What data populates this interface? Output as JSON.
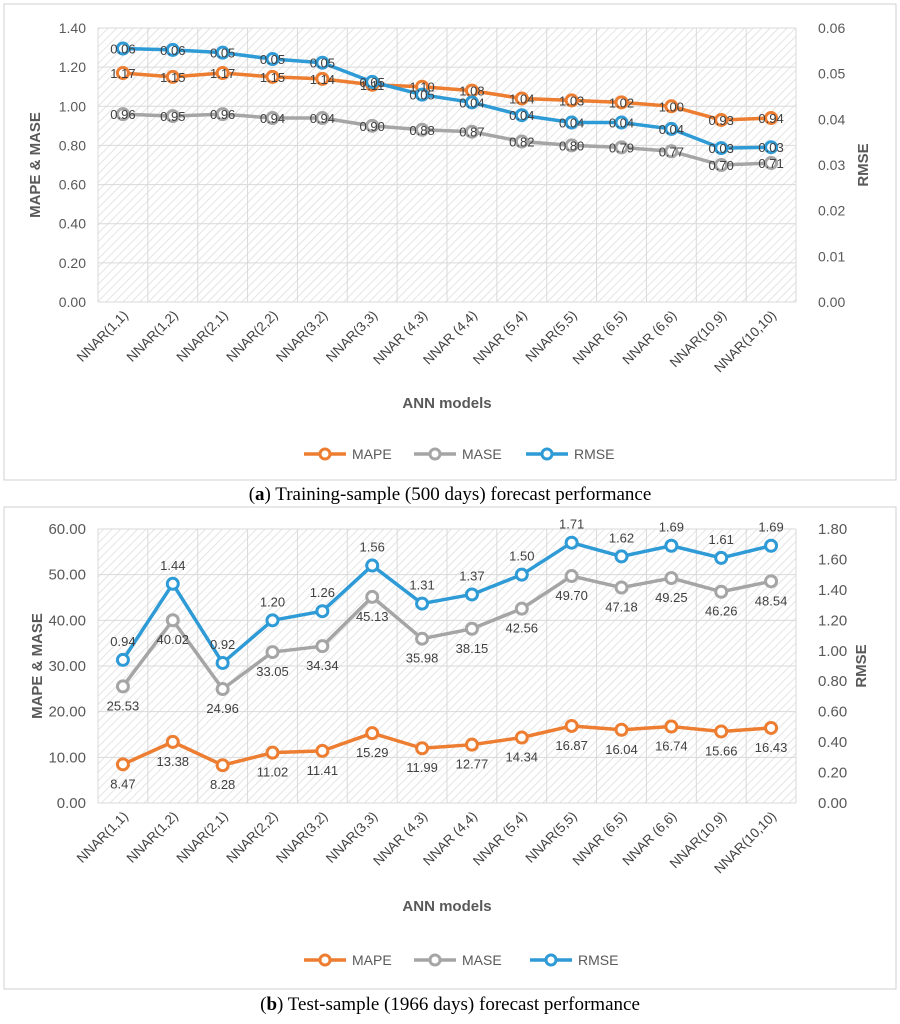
{
  "chart_data": [
    {
      "type": "line",
      "panel_letter": "a",
      "caption_text": ") Training-sample (500 days) forecast performance",
      "title": "",
      "xlabel": "ANN models",
      "ylabel": "MAPE & MASE",
      "y2label": "RMSE",
      "ylim": [
        0,
        1.4
      ],
      "y2lim": [
        0,
        0.06
      ],
      "yticks": [
        "0.00",
        "0.20",
        "0.40",
        "0.60",
        "0.80",
        "1.00",
        "1.20",
        "1.40"
      ],
      "y2ticks": [
        "0.00",
        "0.01",
        "0.02",
        "0.03",
        "0.04",
        "0.05",
        "0.06"
      ],
      "grid": true,
      "legend_position": "bottom",
      "categories": [
        "NNAR(1,1)",
        "NNAR(1,2)",
        "NNAR(2,1)",
        "NNAR(2,2)",
        "NNAR(3,2)",
        "NNAR(3,3)",
        "NNAR (4,3)",
        "NNAR (4,4)",
        "NNAR (5,4)",
        "NNAR(5,5)",
        "NNAR (6,5)",
        "NNAR (6,6)",
        "NNAR(10,9)",
        "NNAR(10,10)"
      ],
      "series": [
        {
          "name": "MAPE",
          "axis": "left",
          "color": "#ED7D31",
          "values": [
            1.17,
            1.15,
            1.17,
            1.15,
            1.14,
            1.11,
            1.1,
            1.08,
            1.04,
            1.03,
            1.02,
            1.0,
            0.93,
            0.94
          ],
          "labels": [
            "1.17",
            "1.15",
            "1.17",
            "1.15",
            "1.14",
            "1.11",
            "1.10",
            "1.08",
            "1.04",
            "1.03",
            "1.02",
            "1.00",
            "0.93",
            "0.94"
          ]
        },
        {
          "name": "MASE",
          "axis": "left",
          "color": "#A5A5A5",
          "values": [
            0.96,
            0.95,
            0.96,
            0.94,
            0.94,
            0.9,
            0.88,
            0.87,
            0.82,
            0.8,
            0.79,
            0.77,
            0.7,
            0.71
          ],
          "labels": [
            "0.96",
            "0.95",
            "0.96",
            "0.94",
            "0.94",
            "0.90",
            "0.88",
            "0.87",
            "0.82",
            "0.80",
            "0.79",
            "0.77",
            "0.70",
            "0.71"
          ]
        },
        {
          "name": "RMSE",
          "axis": "right",
          "color": "#2E9BD6",
          "values": [
            0.0555,
            0.0552,
            0.0546,
            0.0532,
            0.0524,
            0.0482,
            0.0454,
            0.0437,
            0.0409,
            0.0393,
            0.0393,
            0.0379,
            0.0337,
            0.0339
          ],
          "labels": [
            "0.06",
            "0.06",
            "0.05",
            "0.05",
            "0.05",
            "0.05",
            "0.05",
            "0.04",
            "0.04",
            "0.04",
            "0.04",
            "0.04",
            "0.03",
            "0.03"
          ]
        }
      ]
    },
    {
      "type": "line",
      "panel_letter": "b",
      "caption_text": ") Test-sample (1966 days) forecast performance",
      "title": "",
      "xlabel": "ANN models",
      "ylabel": "MAPE & MASE",
      "y2label": "RMSE",
      "ylim": [
        0,
        60
      ],
      "y2lim": [
        0,
        1.8
      ],
      "yticks": [
        "0.00",
        "10.00",
        "20.00",
        "30.00",
        "40.00",
        "50.00",
        "60.00"
      ],
      "y2ticks": [
        "0.00",
        "0.20",
        "0.40",
        "0.60",
        "0.80",
        "1.00",
        "1.20",
        "1.40",
        "1.60",
        "1.80"
      ],
      "grid": true,
      "legend_position": "bottom",
      "categories": [
        "NNAR(1,1)",
        "NNAR(1,2)",
        "NNAR(2,1)",
        "NNAR(2,2)",
        "NNAR(3,2)",
        "NNAR(3,3)",
        "NNAR (4,3)",
        "NNAR (4,4)",
        "NNAR (5,4)",
        "NNAR(5,5)",
        "NNAR (6,5)",
        "NNAR (6,6)",
        "NNAR(10,9)",
        "NNAR(10,10)"
      ],
      "series": [
        {
          "name": "MAPE",
          "axis": "left",
          "color": "#ED7D31",
          "values": [
            8.47,
            13.38,
            8.28,
            11.02,
            11.41,
            15.29,
            11.99,
            12.77,
            14.34,
            16.87,
            16.04,
            16.74,
            15.66,
            16.43
          ],
          "labels": [
            "8.47",
            "13.38",
            "8.28",
            "11.02",
            "11.41",
            "15.29",
            "11.99",
            "12.77",
            "14.34",
            "16.87",
            "16.04",
            "16.74",
            "15.66",
            "16.43"
          ]
        },
        {
          "name": "MASE",
          "axis": "left",
          "color": "#A5A5A5",
          "values": [
            25.53,
            40.02,
            24.96,
            33.05,
            34.34,
            45.13,
            35.98,
            38.15,
            42.56,
            49.7,
            47.18,
            49.25,
            46.26,
            48.54
          ],
          "labels": [
            "25.53",
            "40.02",
            "24.96",
            "33.05",
            "34.34",
            "45.13",
            "35.98",
            "38.15",
            "42.56",
            "49.70",
            "47.18",
            "49.25",
            "46.26",
            "48.54"
          ]
        },
        {
          "name": "RMSE",
          "axis": "right",
          "color": "#2E9BD6",
          "values": [
            0.94,
            1.44,
            0.92,
            1.2,
            1.26,
            1.56,
            1.31,
            1.37,
            1.5,
            1.71,
            1.62,
            1.69,
            1.61,
            1.69
          ],
          "labels": [
            "0.94",
            "1.44",
            "0.92",
            "1.20",
            "1.26",
            "1.56",
            "1.31",
            "1.37",
            "1.50",
            "1.71",
            "1.62",
            "1.69",
            "1.61",
            "1.69"
          ]
        }
      ]
    }
  ]
}
